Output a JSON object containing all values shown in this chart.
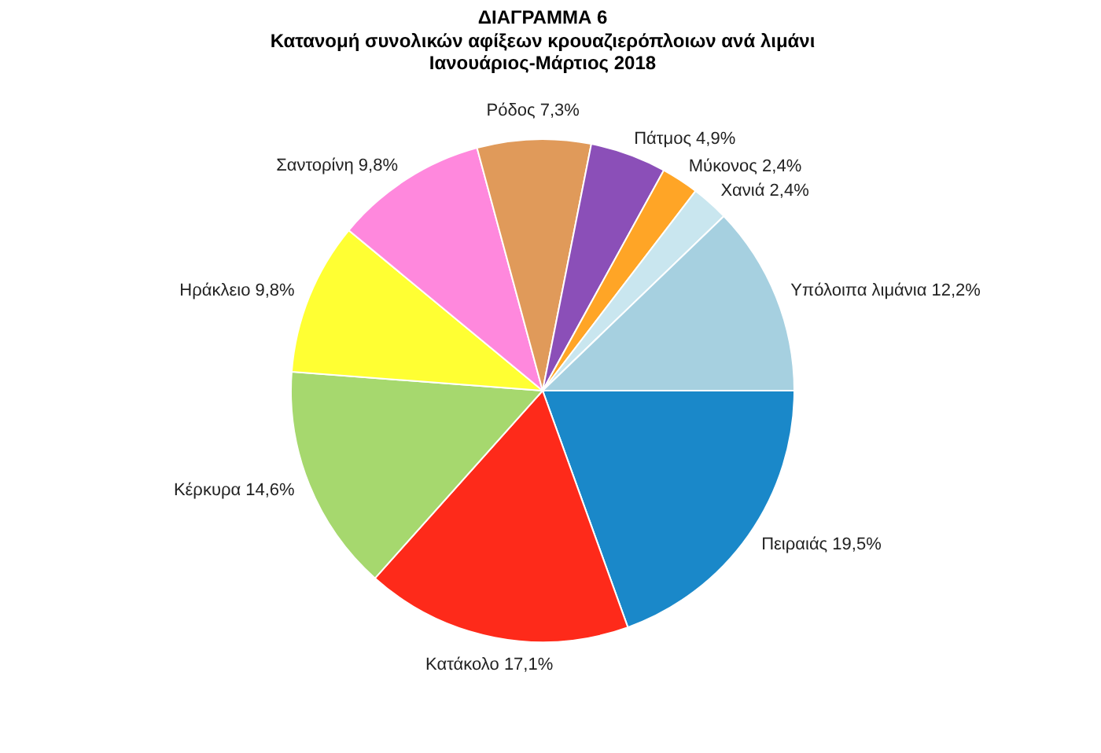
{
  "chart_data": {
    "type": "pie",
    "title": "ΔΙΑΓΡΑΜΜΑ 6",
    "subtitle": [
      "Κατανομή συνολικών αφίξεων κρουαζιερόπλοιων ανά  λιμάνι",
      "Ιανουάριος-Μάρτιος 2018"
    ],
    "categories": [
      "Πειραιάς",
      "Κατάκολο",
      "Κέρκυρα",
      "Ηράκλειο",
      "Σαντορίνη",
      "Ρόδος",
      "Πάτμος",
      "Μύκονος",
      "Χανιά",
      "Υπόλοιπα λιμάνια"
    ],
    "values": [
      19.5,
      17.1,
      14.6,
      9.8,
      9.8,
      7.3,
      4.9,
      2.4,
      2.4,
      12.2
    ],
    "value_labels": [
      "19,5%",
      "17,1%",
      "14,6%",
      "9,8%",
      "9,8%",
      "7,3%",
      "4,9%",
      "2,4%",
      "2,4%",
      "12,2%"
    ],
    "colors": [
      "#1a88c9",
      "#fe2a1a",
      "#a6d86e",
      "#ffff33",
      "#ff88dd",
      "#e09a5a",
      "#8b4fb8",
      "#ffa526",
      "#c9e6ef",
      "#a6d0e0"
    ],
    "legend": false
  }
}
